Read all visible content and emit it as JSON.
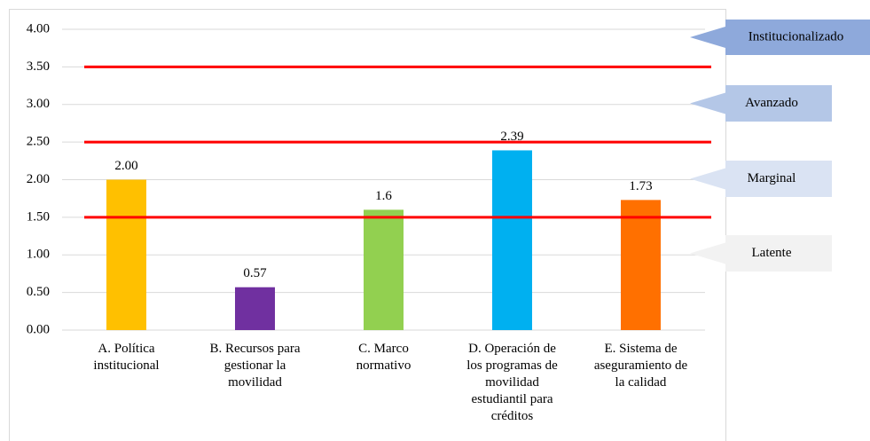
{
  "chart_data": {
    "type": "bar",
    "categories": [
      "A. Política institucional",
      "B. Recursos para gestionar la movilidad",
      "C. Marco normativo",
      "D. Operación de los programas de movilidad estudiantil para créditos",
      "E. Sistema de aseguramiento de la calidad"
    ],
    "values": [
      2.0,
      0.57,
      1.6,
      2.39,
      1.73
    ],
    "value_labels": [
      "2.00",
      "0.57",
      "1.6",
      "2.39",
      "1.73"
    ],
    "colors": [
      "#ffc000",
      "#7030a0",
      "#92d050",
      "#00b0f0",
      "#ff7000"
    ],
    "ylim": [
      0,
      4
    ],
    "yticks": [
      {
        "value": 0,
        "label": "0.00"
      },
      {
        "value": 0.5,
        "label": "0.50"
      },
      {
        "value": 1,
        "label": "1.00"
      },
      {
        "value": 1.5,
        "label": "1.50"
      },
      {
        "value": 2,
        "label": "2.00"
      },
      {
        "value": 2.5,
        "label": "2.50"
      },
      {
        "value": 3,
        "label": "3.00"
      },
      {
        "value": 3.5,
        "label": "3.50"
      },
      {
        "value": 4,
        "label": "4.00"
      }
    ],
    "grid": true,
    "reference_lines": [
      1.5,
      2.5,
      3.5
    ],
    "reference_color": "#ff0000",
    "levels": [
      "Institucionalizado",
      "Avanzado",
      "Marginal",
      "Latente"
    ],
    "level_colors": [
      "#8ea9db",
      "#b4c7e7",
      "#dae3f3",
      "#f2f2f2"
    ]
  }
}
